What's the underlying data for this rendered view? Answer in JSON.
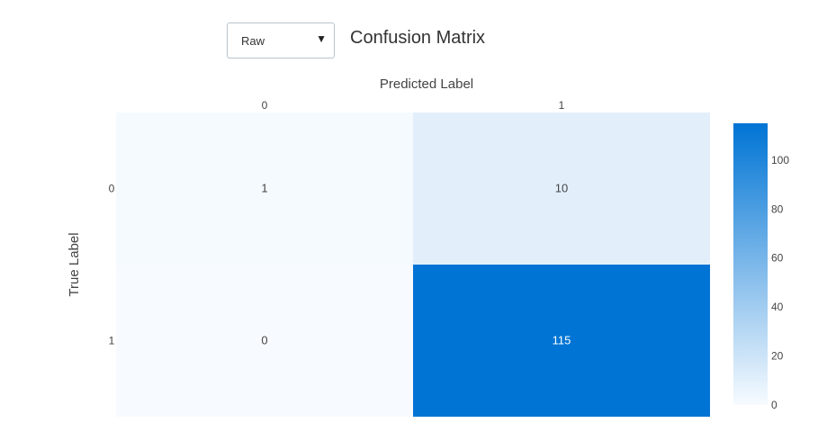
{
  "controls": {
    "normalization_select": {
      "selected": "Raw"
    }
  },
  "chart_data": {
    "type": "heatmap",
    "title": "Confusion Matrix",
    "xlabel": "Predicted Label",
    "ylabel": "True Label",
    "x_categories": [
      "0",
      "1"
    ],
    "y_categories": [
      "0",
      "1"
    ],
    "values": [
      [
        1,
        10
      ],
      [
        0,
        115
      ]
    ],
    "colorscale": [
      "#f7fbff",
      "#0074d4"
    ],
    "zlim": [
      0,
      115
    ],
    "colorbar_ticks": [
      0,
      20,
      40,
      60,
      80,
      100
    ]
  }
}
